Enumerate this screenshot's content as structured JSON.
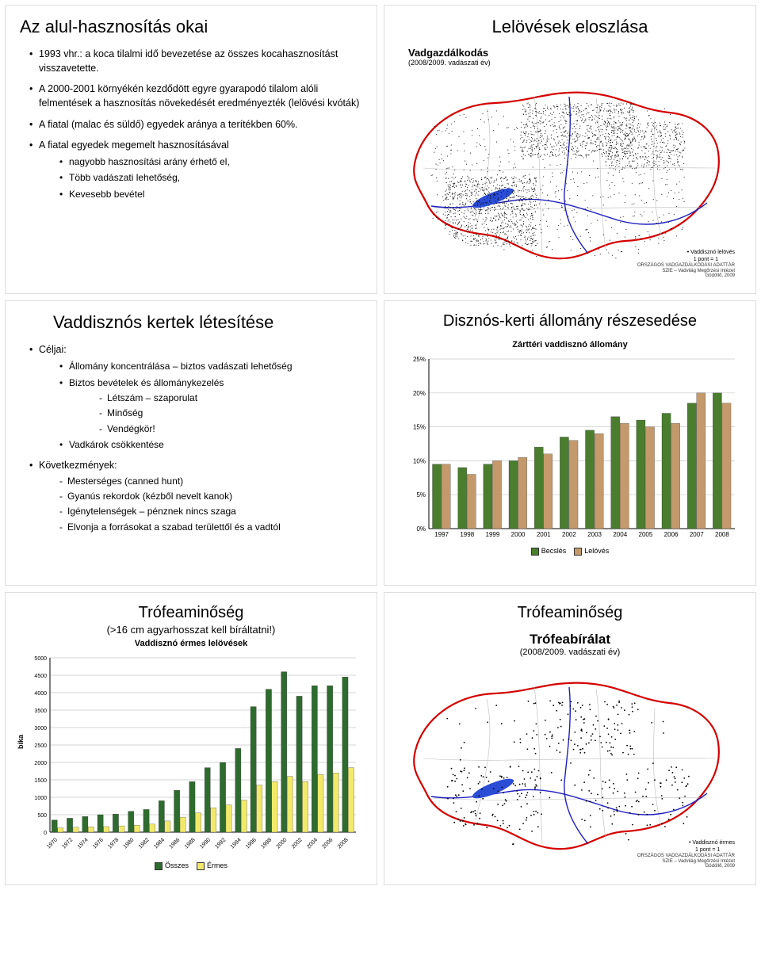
{
  "panel1": {
    "title": "Az alul-hasznosítás okai",
    "bullets": [
      "1993 vhr.: a koca tilalmi idő bevezetése az összes kocahasznosítást visszavetette.",
      "A 2000-2001 környékén kezdődött egyre gyarapodó tilalom alóli felmentések a hasznosítás növekedését eredményezték (lelövési kvóták)",
      "A fiatal (malac és süldő) egyedek aránya a terítékben 60%.",
      "A fiatal egyedek megemelt hasznosításával"
    ],
    "sub_bullets": [
      "nagyobb hasznosítási arány érhető el,",
      "Több vadászati lehetőség,",
      "Kevesebb bevétel"
    ]
  },
  "panel2": {
    "title": "Lelövések eloszlása",
    "map_title": "Vadgazdálkodás",
    "map_sub": "(2008/2009. vadászati év)",
    "legend_top": "Vaddisznó lelövés",
    "legend_bot": "1 pont = 1",
    "src1": "ORSZÁGOS VADGAZDÁLKODÁSI ADATTÁR",
    "src2": "SZIE – Vadvilág Megőrzési Intézet",
    "src3": "Gödöllő, 2009",
    "colors": {
      "border": "#d40000",
      "river": "#2020c0",
      "lake": "#2b4dd6",
      "fill": "#ffffff",
      "dots": "#000000"
    }
  },
  "panel3": {
    "title": "Vaddisznós kertek létesítése",
    "bullets_head": [
      "Céljai:"
    ],
    "bullets_sub1": [
      "Állomány koncentrálása – biztos vadászati lehetőség",
      "Biztos bevételek és állománykezelés"
    ],
    "dash1": [
      "Létszám – szaporulat",
      "Minőség",
      "Vendégkör!"
    ],
    "bullets_sub2": [
      "Vadkárok csökkentése"
    ],
    "bullets_head2": [
      "Következmények:"
    ],
    "dash2": [
      "Mesterséges (canned hunt)",
      "Gyanús rekordok (kézből nevelt kanok)",
      "Igénytelenségek – pénznek nincs szaga",
      "Elvonja a forrásokat a szabad területtől és a vadtól"
    ]
  },
  "panel4": {
    "title": "Disznós-kerti állomány részesedése",
    "chart": {
      "type": "bar-grouped",
      "subtitle": "Zárttéri vaddisznó állomány",
      "categories": [
        "1997",
        "1998",
        "1999",
        "2000",
        "2001",
        "2002",
        "2003",
        "2004",
        "2005",
        "2006",
        "2007",
        "2008"
      ],
      "series": [
        {
          "name": "Becslés",
          "color": "#4a7d2e",
          "values": [
            9.5,
            9.0,
            9.5,
            10.0,
            12.0,
            13.5,
            14.5,
            16.5,
            16.0,
            17.0,
            18.5,
            20.0
          ]
        },
        {
          "name": "Lelövés",
          "color": "#c49a6c",
          "values": [
            9.5,
            8.0,
            10.0,
            10.5,
            11.0,
            13.0,
            14.0,
            15.5,
            15.0,
            15.5,
            20.0,
            18.5
          ]
        }
      ],
      "ylim": [
        0,
        25
      ],
      "ytick_step": 5,
      "y_suffix": "%",
      "background": "#ffffff",
      "grid_color": "#c8c8c8",
      "bar_group_width": 0.72,
      "label_fontsize": 8
    }
  },
  "panel5": {
    "title": "Trófeaminőség",
    "subtitle": "(>16 cm agyarhosszat kell bíráltatni!)",
    "chart": {
      "type": "bar-grouped",
      "subtitle": "Vaddisznó érmes lelövések",
      "ylabel": "bika",
      "categories": [
        "1970",
        "1972",
        "1974",
        "1976",
        "1978",
        "1980",
        "1982",
        "1984",
        "1986",
        "1988",
        "1990",
        "1992",
        "1994",
        "1996",
        "1998",
        "2000",
        "2002",
        "2004",
        "2006",
        "2008"
      ],
      "series": [
        {
          "name": "Összes",
          "color": "#2e6b2e",
          "values": [
            350,
            400,
            450,
            500,
            520,
            600,
            650,
            900,
            1200,
            1450,
            1850,
            2000,
            2400,
            3600,
            4100,
            4600,
            3900,
            4200,
            4200,
            4450
          ]
        },
        {
          "name": "Érmes",
          "color": "#f2e96b",
          "values": [
            120,
            140,
            150,
            160,
            180,
            200,
            230,
            320,
            430,
            550,
            700,
            780,
            920,
            1350,
            1450,
            1600,
            1450,
            1650,
            1700,
            1850
          ]
        }
      ],
      "ylim": [
        0,
        5000
      ],
      "ytick_step": 500,
      "background": "#ffffff",
      "grid_color": "#c8c8c8",
      "bar_group_width": 0.78,
      "label_fontsize": 7,
      "xlabel_rotate": -45
    }
  },
  "panel6": {
    "title": "Trófeaminőség",
    "map_title": "Trófeabírálat",
    "map_sub": "(2008/2009. vadászati év)",
    "legend_top": "Vaddisznó érmes",
    "legend_bot": "1 pont = 1",
    "src1": "ORSZÁGOS VADGAZDÁLKODÁSI ADATTÁR",
    "src2": "SZIE – Vadvilág Megőrzési Intézet",
    "src3": "Gödöllő, 2009",
    "colors": {
      "border": "#d40000",
      "river": "#2020c0",
      "lake": "#2b4dd6",
      "fill": "#ffffff",
      "dots": "#000000"
    }
  }
}
